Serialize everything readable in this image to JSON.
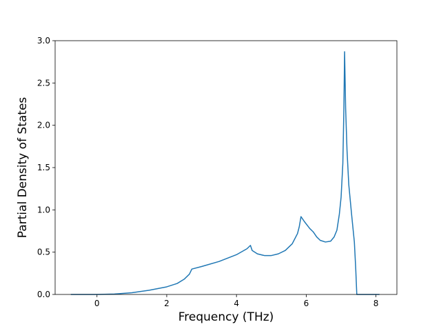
{
  "chart_data": {
    "type": "line",
    "x_label": "Frequency (THz)",
    "y_label": "Partial Density of States",
    "x": [
      -0.75,
      0,
      0.5,
      1,
      1.5,
      2,
      2.3,
      2.5,
      2.65,
      2.72,
      3,
      3.5,
      4,
      4.3,
      4.4,
      4.45,
      4.6,
      4.8,
      5,
      5.2,
      5.4,
      5.6,
      5.75,
      5.8,
      5.85,
      5.95,
      6.1,
      6.2,
      6.3,
      6.4,
      6.55,
      6.7,
      6.8,
      6.88,
      6.95,
      7.0,
      7.05,
      7.08,
      7.1,
      7.13,
      7.17,
      7.22,
      7.3,
      7.38,
      7.42,
      7.45,
      8.1
    ],
    "series": [
      {
        "color": "#1f77b4",
        "values": [
          0,
          0,
          0.005,
          0.02,
          0.05,
          0.09,
          0.13,
          0.18,
          0.24,
          0.3,
          0.33,
          0.39,
          0.47,
          0.54,
          0.58,
          0.52,
          0.48,
          0.46,
          0.46,
          0.48,
          0.52,
          0.6,
          0.72,
          0.8,
          0.92,
          0.86,
          0.78,
          0.74,
          0.68,
          0.64,
          0.62,
          0.63,
          0.68,
          0.76,
          0.95,
          1.15,
          1.55,
          2.2,
          2.87,
          2.2,
          1.7,
          1.3,
          0.95,
          0.62,
          0.3,
          0,
          0
        ]
      }
    ],
    "xlim": [
      -1.2,
      8.6
    ],
    "ylim": [
      0,
      3.0
    ],
    "xticks": [
      0,
      2,
      4,
      6,
      8
    ],
    "yticks": [
      {
        "value": 0,
        "label": "0.0"
      },
      {
        "value": 0.5,
        "label": "0.5"
      },
      {
        "value": 1,
        "label": "1.0"
      },
      {
        "value": 1.5,
        "label": "1.5"
      },
      {
        "value": 2,
        "label": "2.0"
      },
      {
        "value": 2.5,
        "label": "2.5"
      },
      {
        "value": 3,
        "label": "3.0"
      }
    ]
  }
}
